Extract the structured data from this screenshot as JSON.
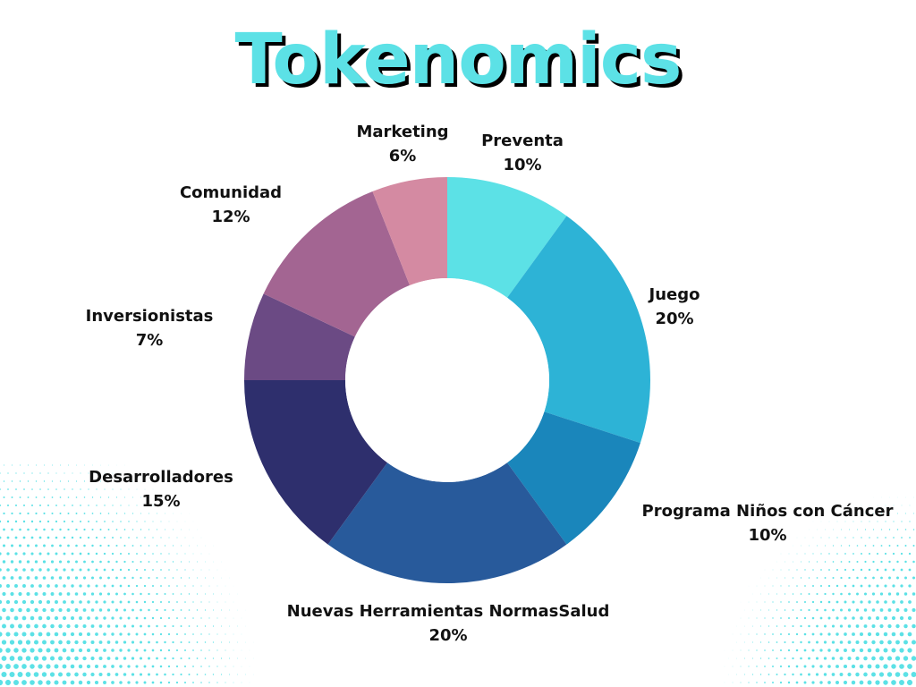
{
  "title": "Tokenomics",
  "colors": {
    "title": "#5ce1e6",
    "title_shadow": "#000000",
    "dots": "#5ce1e6"
  },
  "chart_data": {
    "type": "pie",
    "style": "donut",
    "title": "Tokenomics",
    "start_angle_deg": 0,
    "direction": "clockwise",
    "slices": [
      {
        "label": "Preventa",
        "value": 10,
        "value_label": "10%",
        "color": "#5ce1e6"
      },
      {
        "label": "Juego",
        "value": 20,
        "value_label": "20%",
        "color": "#2db3d6"
      },
      {
        "label": "Programa Niños con Cáncer",
        "value": 10,
        "value_label": "10%",
        "color": "#1a86bb"
      },
      {
        "label": "Nuevas Herramientas NormasSalud",
        "value": 20,
        "value_label": "20%",
        "color": "#285a9b"
      },
      {
        "label": "Desarrolladores",
        "value": 15,
        "value_label": "15%",
        "color": "#2e2f6d"
      },
      {
        "label": "Inversionistas",
        "value": 7,
        "value_label": "7%",
        "color": "#6b4a84"
      },
      {
        "label": "Comunidad",
        "value": 12,
        "value_label": "12%",
        "color": "#a36592"
      },
      {
        "label": "Marketing",
        "value": 6,
        "value_label": "6%",
        "color": "#d48aa2"
      }
    ]
  }
}
